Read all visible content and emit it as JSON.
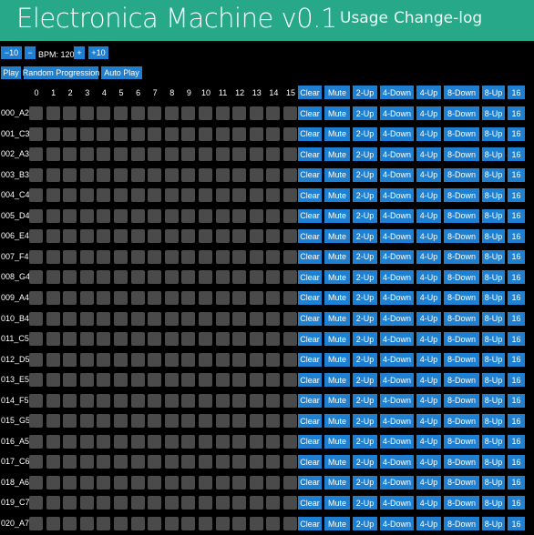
{
  "header": {
    "title": "Electronica Machine v0.1",
    "nav": [
      "Usage",
      "Change-log"
    ]
  },
  "tempo": {
    "minus10": "−10",
    "minus1": "−",
    "bpm_label": "BPM: 120",
    "plus1": "+",
    "plus10": "+10"
  },
  "controls": {
    "play": "Play",
    "random": "Random Progression",
    "autoplay": "Auto Play"
  },
  "columns": [
    "0",
    "1",
    "2",
    "3",
    "4",
    "5",
    "6",
    "7",
    "8",
    "9",
    "10",
    "11",
    "12",
    "13",
    "14",
    "15"
  ],
  "row_actions": [
    "Clear",
    "Mute",
    "2-Up",
    "4-Down",
    "4-Up",
    "8-Down",
    "8-Up",
    "16"
  ],
  "rows": [
    "000_A2",
    "001_C3",
    "002_A3",
    "003_B3",
    "004_C4",
    "005_D4",
    "006_E4",
    "007_F4",
    "008_G4",
    "009_A4",
    "010_B4",
    "011_C5",
    "012_D5",
    "013_E5",
    "014_F5",
    "015_G5",
    "016_A5",
    "017_C6",
    "018_A6",
    "019_C7",
    "020_A7"
  ],
  "colors": {
    "header": "#26a889",
    "button": "#1f7fd0",
    "cell": "#4a4a4a",
    "background": "#000000"
  }
}
